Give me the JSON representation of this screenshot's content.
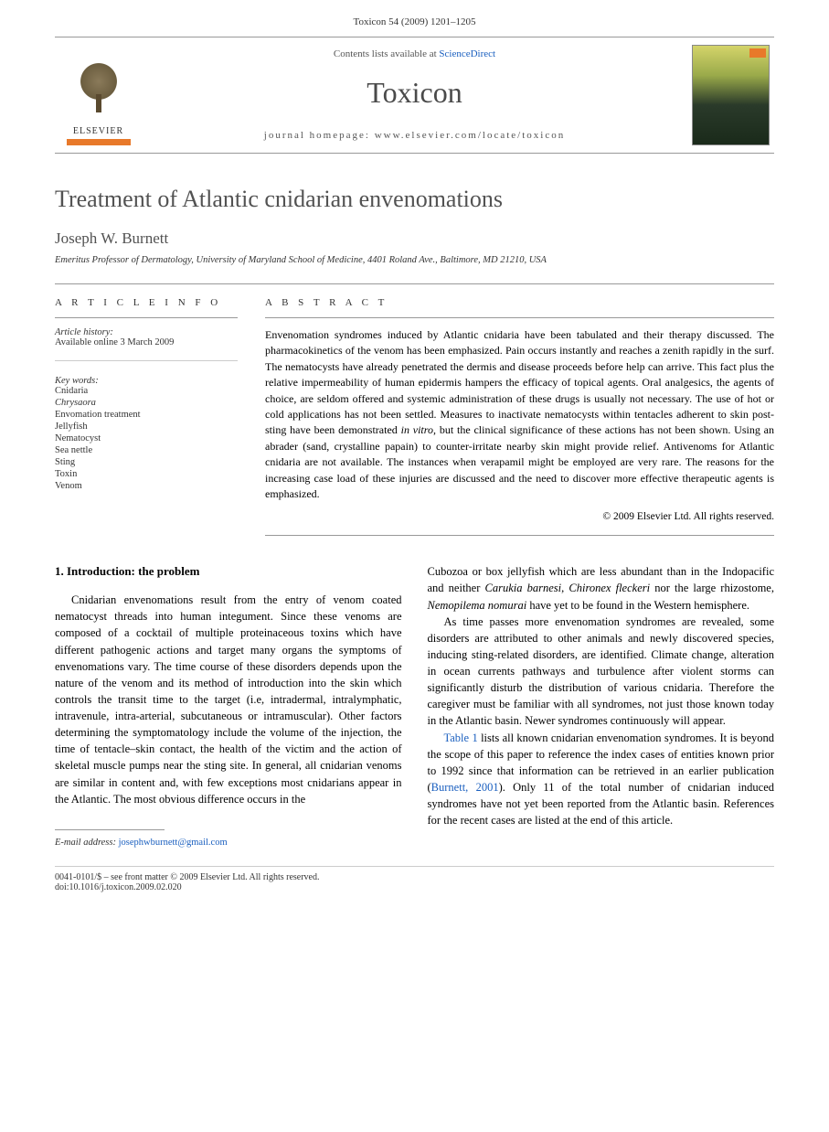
{
  "header": {
    "citation": "Toxicon 54 (2009) 1201–1205"
  },
  "banner": {
    "publisher_name": "ELSEVIER",
    "contents_prefix": "Contents lists available at ",
    "contents_link": "ScienceDirect",
    "journal_name": "Toxicon",
    "homepage_label": "journal homepage: ",
    "homepage_url": "www.elsevier.com/locate/toxicon"
  },
  "article": {
    "title": "Treatment of Atlantic cnidarian envenomations",
    "author": "Joseph W. Burnett",
    "affiliation": "Emeritus Professor of Dermatology, University of Maryland School of Medicine, 4401 Roland Ave., Baltimore, MD 21210, USA"
  },
  "info": {
    "heading": "A R T I C L E   I N F O",
    "history_label": "Article history:",
    "history_text": "Available online 3 March 2009",
    "keywords_label": "Key words:",
    "keywords": [
      "Cnidaria",
      "Chrysaora",
      "Envomation treatment",
      "Jellyfish",
      "Nematocyst",
      "Sea nettle",
      "Sting",
      "Toxin",
      "Venom"
    ]
  },
  "abstract": {
    "heading": "A B S T R A C T",
    "text_parts": [
      "Envenomation syndromes induced by Atlantic cnidaria have been tabulated and their therapy discussed. The pharmacokinetics of the venom has been emphasized. Pain occurs instantly and reaches a zenith rapidly in the surf. The nematocysts have already penetrated the dermis and disease proceeds before help can arrive. This fact plus the relative impermeability of human epidermis hampers the efficacy of topical agents. Oral analgesics, the agents of choice, are seldom offered and systemic administration of these drugs is usually not necessary. The use of hot or cold applications has not been settled. Measures to inactivate nematocysts within tentacles adherent to skin post-sting have been demonstrated ",
      "in vitro",
      ", but the clinical significance of these actions has not been shown. Using an abrader (sand, crystalline papain) to counter-irritate nearby skin might provide relief. Antivenoms for Atlantic cnidaria are not available. The instances when verapamil might be employed are very rare. The reasons for the increasing case load of these injuries are discussed and the need to discover more effective therapeutic agents is emphasized."
    ],
    "copyright": "© 2009 Elsevier Ltd. All rights reserved."
  },
  "body": {
    "section1_heading": "1.  Introduction: the problem",
    "col1_p1": "Cnidarian envenomations result from the entry of venom coated nematocyst threads into human integument. Since these venoms are composed of a cocktail of multiple proteinaceous toxins which have different pathogenic actions and target many organs the symptoms of envenomations vary. The time course of these disorders depends upon the nature of the venom and its method of introduction into the skin which controls the transit time to the target (i.e, intradermal, intralymphatic, intravenule, intra-arterial, subcutaneous or intramuscular). Other factors determining the symptomatology include the volume of the injection, the time of tentacle–skin contact, the health of the victim and the action of skeletal muscle pumps near the sting site. In general, all cnidarian venoms are similar in content and, with few exceptions most cnidarians appear in the Atlantic. The most obvious difference occurs in the",
    "col2_p1_parts": [
      "Cubozoa or box jellyfish which are less abundant than in the Indopacific and neither ",
      "Carukia barnesi",
      ", ",
      "Chironex fleckeri",
      " nor the large rhizostome, ",
      "Nemopilema nomurai",
      " have yet to be found in the Western hemisphere."
    ],
    "col2_p2": "As time passes more envenomation syndromes are revealed, some disorders are attributed to other animals and newly discovered species, inducing sting-related disorders, are identified. Climate change, alteration in ocean currents pathways and turbulence after violent storms can significantly disturb the distribution of various cnidaria. Therefore the caregiver must be familiar with all syndromes, not just those known today in the Atlantic basin. Newer syndromes continuously will appear.",
    "col2_p3_parts": [
      "Table 1",
      " lists all known cnidarian envenomation syndromes. It is beyond the scope of this paper to reference the index cases of entities known prior to 1992 since that information can be retrieved in an earlier publication (",
      "Burnett, 2001",
      "). Only 11 of the total number of cnidarian induced syndromes have not yet been reported from the Atlantic basin. References for the recent cases are listed at the end of this article."
    ]
  },
  "footnote": {
    "email_label": "E-mail address: ",
    "email": "josephwburnett@gmail.com"
  },
  "footer": {
    "line1": "0041-0101/$ – see front matter © 2009 Elsevier Ltd. All rights reserved.",
    "line2": "doi:10.1016/j.toxicon.2009.02.020"
  },
  "colors": {
    "orange": "#e8792a",
    "link_blue": "#1a5fbf",
    "text_gray": "#525252",
    "border_gray": "#999999"
  }
}
